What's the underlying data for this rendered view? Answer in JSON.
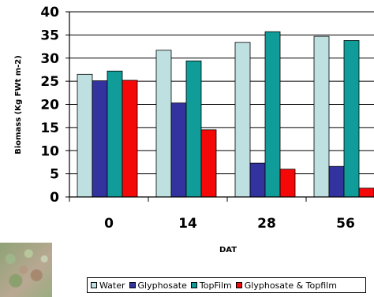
{
  "chart_data": {
    "type": "bar",
    "title": "",
    "xlabel": "DAT",
    "ylabel": "Biomass (Kg FWt m-2)",
    "categories": [
      "0",
      "14",
      "28",
      "56"
    ],
    "ylim": [
      0,
      40
    ],
    "yticks": [
      0,
      5,
      10,
      15,
      20,
      25,
      30,
      35,
      40
    ],
    "grid": true,
    "legend_position": "bottom",
    "series": [
      {
        "name": "Water",
        "color": "#bfe0e0",
        "values": [
          26.5,
          31.7,
          33.4,
          34.7
        ]
      },
      {
        "name": "Glyphosate",
        "color": "#3333a0",
        "values": [
          25.1,
          20.3,
          7.3,
          6.6
        ]
      },
      {
        "name": "TopFilm",
        "color": "#109c98",
        "values": [
          27.2,
          29.4,
          35.7,
          33.8
        ]
      },
      {
        "name": "Glyphosate & Topfilm",
        "color": "#f40808",
        "values": [
          25.2,
          14.5,
          6.0,
          1.9
        ]
      }
    ]
  },
  "photo": {
    "icon": "turfgrass-photo"
  }
}
